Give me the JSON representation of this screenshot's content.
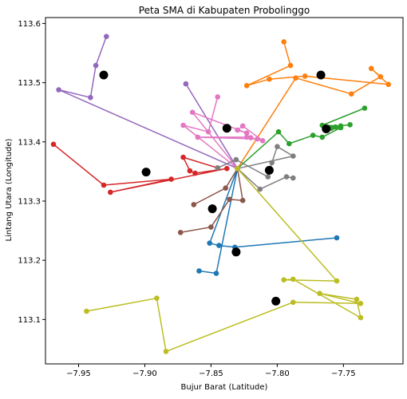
{
  "chart_data": {
    "type": "scatter",
    "title": "Peta SMA di Kabupaten Probolinggo",
    "xlabel": "Bujur Barat (Latitude)",
    "ylabel": "Lintang Utara (Longitude)",
    "xlim": [
      -0.975,
      -0.705
    ],
    "ylim": [
      113.025,
      113.61
    ],
    "xticks": [
      -0.95,
      -0.9,
      -0.85,
      -0.8,
      -0.75
    ],
    "xtick_labels": [
      "−7.95",
      "−7.90",
      "−7.85",
      "−7.80",
      "−7.75"
    ],
    "yticks": [
      113.1,
      113.2,
      113.3,
      113.4,
      113.5,
      113.6
    ],
    "ytick_labels": [
      "113.1",
      "113.2",
      "113.3",
      "113.4",
      "113.5",
      "113.6"
    ],
    "grid": false,
    "legend": "none",
    "series": [
      {
        "color": "#1f77b4",
        "points": [
          [
            -0.755,
            113.238
          ],
          [
            -0.832,
            113.222
          ],
          [
            -0.844,
            113.225
          ],
          [
            -0.851,
            113.229
          ],
          [
            -0.83,
            113.355
          ],
          [
            -0.846,
            113.178
          ],
          [
            -0.859,
            113.182
          ]
        ]
      },
      {
        "color": "#ff7f0e",
        "points": [
          [
            -0.795,
            113.569
          ],
          [
            -0.79,
            113.529
          ],
          [
            -0.823,
            113.495
          ],
          [
            -0.806,
            113.506
          ],
          [
            -0.779,
            113.511
          ],
          [
            -0.716,
            113.497
          ],
          [
            -0.729,
            113.524
          ],
          [
            -0.722,
            113.51
          ],
          [
            -0.744,
            113.481
          ],
          [
            -0.786,
            113.508
          ],
          [
            -0.83,
            113.355
          ]
        ]
      },
      {
        "color": "#2ca02c",
        "points": [
          [
            -0.734,
            113.457
          ],
          [
            -0.766,
            113.428
          ],
          [
            -0.752,
            113.427
          ],
          [
            -0.745,
            113.429
          ],
          [
            -0.763,
            113.424
          ],
          [
            -0.756,
            113.425
          ],
          [
            -0.759,
            113.423
          ],
          [
            -0.752,
            113.424
          ],
          [
            -0.766,
            113.408
          ],
          [
            -0.773,
            113.411
          ],
          [
            -0.791,
            113.397
          ],
          [
            -0.799,
            113.417
          ],
          [
            -0.83,
            113.355
          ]
        ]
      },
      {
        "color": "#d62728",
        "points": [
          [
            -0.969,
            113.396
          ],
          [
            -0.931,
            113.327
          ],
          [
            -0.88,
            113.337
          ],
          [
            -0.926,
            113.315
          ],
          [
            -0.838,
            113.355
          ],
          [
            -0.862,
            113.347
          ],
          [
            -0.866,
            113.351
          ],
          [
            -0.871,
            113.374
          ],
          [
            -0.845,
            113.356
          ]
        ]
      },
      {
        "color": "#9467bd",
        "points": [
          [
            -0.929,
            113.578
          ],
          [
            -0.937,
            113.529
          ],
          [
            -0.941,
            113.475
          ],
          [
            -0.965,
            113.488
          ],
          [
            -0.83,
            113.355
          ],
          [
            -0.869,
            113.498
          ]
        ]
      },
      {
        "color": "#8c564b",
        "points": [
          [
            -0.873,
            113.247
          ],
          [
            -0.85,
            113.256
          ],
          [
            -0.836,
            113.303
          ],
          [
            -0.826,
            113.301
          ],
          [
            -0.83,
            113.355
          ],
          [
            -0.839,
            113.322
          ],
          [
            -0.863,
            113.294
          ]
        ]
      },
      {
        "color": "#e377c2",
        "points": [
          [
            -0.845,
            113.476
          ],
          [
            -0.852,
            113.417
          ],
          [
            -0.871,
            113.428
          ],
          [
            -0.83,
            113.355
          ],
          [
            -0.864,
            113.45
          ],
          [
            -0.823,
            113.415
          ],
          [
            -0.83,
            113.42
          ],
          [
            -0.826,
            113.427
          ],
          [
            -0.811,
            113.402
          ],
          [
            -0.82,
            113.407
          ],
          [
            -0.823,
            113.408
          ],
          [
            -0.86,
            113.408
          ],
          [
            -0.815,
            113.405
          ]
        ]
      },
      {
        "color": "#7f7f7f",
        "points": [
          [
            -0.845,
            113.356
          ],
          [
            -0.831,
            113.37
          ],
          [
            -0.807,
            113.341
          ],
          [
            -0.804,
            113.365
          ],
          [
            -0.8,
            113.392
          ],
          [
            -0.788,
            113.376
          ],
          [
            -0.83,
            113.355
          ],
          [
            -0.813,
            113.32
          ],
          [
            -0.793,
            113.341
          ],
          [
            -0.788,
            113.339
          ]
        ]
      },
      {
        "color": "#bcbd22",
        "points": [
          [
            -0.83,
            113.355
          ],
          [
            -0.755,
            113.165
          ],
          [
            -0.795,
            113.167
          ],
          [
            -0.788,
            113.168
          ],
          [
            -0.737,
            113.103
          ],
          [
            -0.74,
            113.134
          ],
          [
            -0.768,
            113.144
          ],
          [
            -0.737,
            113.127
          ],
          [
            -0.788,
            113.129
          ],
          [
            -0.884,
            113.046
          ],
          [
            -0.891,
            113.136
          ],
          [
            -0.944,
            113.114
          ]
        ]
      }
    ],
    "centroids": [
      [
        -0.931,
        113.513
      ],
      [
        -0.899,
        113.349
      ],
      [
        -0.849,
        113.287
      ],
      [
        -0.838,
        113.423
      ],
      [
        -0.831,
        113.214
      ],
      [
        -0.806,
        113.352
      ],
      [
        -0.801,
        113.131
      ],
      [
        -0.767,
        113.513
      ],
      [
        -0.763,
        113.422
      ]
    ]
  }
}
